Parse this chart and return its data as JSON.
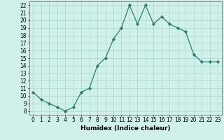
{
  "x": [
    0,
    1,
    2,
    3,
    4,
    5,
    6,
    7,
    8,
    9,
    10,
    11,
    12,
    13,
    14,
    15,
    16,
    17,
    18,
    19,
    20,
    21,
    22,
    23
  ],
  "y": [
    10.5,
    9.5,
    9.0,
    8.5,
    8.0,
    8.5,
    10.5,
    11.0,
    14.0,
    15.0,
    17.5,
    19.0,
    22.0,
    19.5,
    22.0,
    19.5,
    20.5,
    19.5,
    19.0,
    18.5,
    15.5,
    14.5,
    14.5,
    14.5
  ],
  "xlabel": "Humidex (Indice chaleur)",
  "ylim_min": 7.5,
  "ylim_max": 22.5,
  "xlim_min": -0.5,
  "xlim_max": 23.5,
  "yticks": [
    8,
    9,
    10,
    11,
    12,
    13,
    14,
    15,
    16,
    17,
    18,
    19,
    20,
    21,
    22
  ],
  "xticks": [
    0,
    1,
    2,
    3,
    4,
    5,
    6,
    7,
    8,
    9,
    10,
    11,
    12,
    13,
    14,
    15,
    16,
    17,
    18,
    19,
    20,
    21,
    22,
    23
  ],
  "line_color": "#2e7d6e",
  "bg_color": "#cff0eb",
  "grid_color": "#aad4cc",
  "tick_fontsize": 5.5,
  "xlabel_fontsize": 6.5,
  "linewidth": 0.9,
  "markersize": 2.2
}
